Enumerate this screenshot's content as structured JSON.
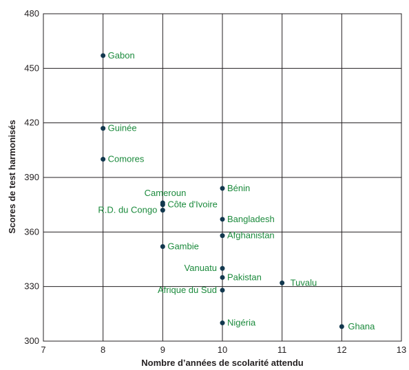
{
  "chart_data": {
    "type": "scatter",
    "title": "",
    "xlabel": "Nombre d’années de scolarité attendu",
    "ylabel": "Scores de test harmonisés",
    "xlim": [
      7,
      13
    ],
    "ylim": [
      300,
      480
    ],
    "xticks": [
      "7",
      "8",
      "9",
      "10",
      "11",
      "12",
      "13"
    ],
    "yticks": [
      "300",
      "330",
      "360",
      "390",
      "420",
      "450",
      "480"
    ],
    "grid": true,
    "colors": {
      "point": "#12384e",
      "label": "#1b8a3c",
      "grid": "#231f20"
    },
    "points": [
      {
        "label": "Gabon",
        "x": 8,
        "y": 457,
        "label_side": "right"
      },
      {
        "label": "Guinée",
        "x": 8,
        "y": 417,
        "label_side": "right"
      },
      {
        "label": "Comores",
        "x": 8,
        "y": 400,
        "label_side": "right"
      },
      {
        "label": "Cameroun",
        "x": 9,
        "y": 376,
        "label_side": "upper-left"
      },
      {
        "label": "Côte d'Ivoire",
        "x": 9,
        "y": 375,
        "label_side": "right"
      },
      {
        "label": "R.D. du Congo",
        "x": 9,
        "y": 372,
        "label_side": "left"
      },
      {
        "label": "Gambie",
        "x": 9,
        "y": 352,
        "label_side": "right"
      },
      {
        "label": "Bénin",
        "x": 10,
        "y": 384,
        "label_side": "right"
      },
      {
        "label": "Bangladesh",
        "x": 10,
        "y": 367,
        "label_side": "right"
      },
      {
        "label": "Afghanistan",
        "x": 10,
        "y": 358,
        "label_side": "right"
      },
      {
        "label": "Vanuatu",
        "x": 10,
        "y": 340,
        "label_side": "left"
      },
      {
        "label": "Pakistan",
        "x": 10,
        "y": 335,
        "label_side": "right"
      },
      {
        "label": "Afrique du Sud",
        "x": 10,
        "y": 328,
        "label_side": "left"
      },
      {
        "label": "Nigéria",
        "x": 10,
        "y": 310,
        "label_side": "right"
      },
      {
        "label": "Tuvalu",
        "x": 11,
        "y": 332,
        "label_side": "right"
      },
      {
        "label": "Ghana",
        "x": 12,
        "y": 308,
        "label_side": "right"
      }
    ]
  }
}
